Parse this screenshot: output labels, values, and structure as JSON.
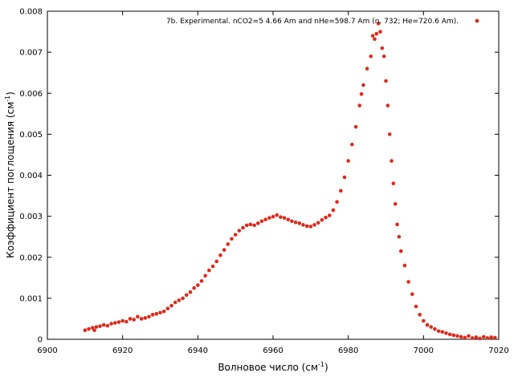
{
  "chart_data": {
    "type": "scatter",
    "title": "",
    "xlabel": "Волновое число (см",
    "xlabel_sup": "-1",
    "xlabel_end": ")",
    "ylabel": "Коэффициент поглощения (см",
    "ylabel_sup": "-1",
    "ylabel_end": ")",
    "xlim": [
      6900,
      7020
    ],
    "ylim": [
      0,
      0.008
    ],
    "xticks": [
      "6900",
      "6920",
      "6940",
      "6960",
      "6980",
      "7000",
      "7020"
    ],
    "yticks": [
      "0",
      "0.001",
      "0.002",
      "0.003",
      "0.004",
      "0.005",
      "0.006",
      "0.007",
      "0.008"
    ],
    "legend_position": "top-right",
    "grid": false,
    "series": [
      {
        "name": "7b. Experimental. nCO2=5 4.66 Am and nHe=598.7 Am (n. 732; He=720.6 Am).",
        "color": "#dd2a1b",
        "x": [
          6910.0,
          6911.0,
          6912.0,
          6912.5,
          6913.0,
          6914.0,
          6915.0,
          6916.0,
          6917.0,
          6918.0,
          6919.0,
          6920.0,
          6921.0,
          6922.0,
          6923.0,
          6924.0,
          6925.0,
          6926.0,
          6927.0,
          6928.0,
          6929.0,
          6930.0,
          6931.0,
          6932.0,
          6933.0,
          6934.0,
          6935.0,
          6936.0,
          6937.0,
          6938.0,
          6939.0,
          6940.0,
          6941.0,
          6942.0,
          6943.0,
          6944.0,
          6945.0,
          6946.0,
          6947.0,
          6948.0,
          6949.0,
          6950.0,
          6951.0,
          6952.0,
          6953.0,
          6954.0,
          6955.0,
          6956.0,
          6957.0,
          6958.0,
          6959.0,
          6960.0,
          6961.0,
          6962.0,
          6963.0,
          6964.0,
          6965.0,
          6966.0,
          6967.0,
          6968.0,
          6969.0,
          6970.0,
          6971.0,
          6972.0,
          6973.0,
          6974.0,
          6975.0,
          6976.0,
          6977.0,
          6978.0,
          6979.0,
          6980.0,
          6981.0,
          6982.0,
          6983.0,
          6983.5,
          6984.0,
          6985.0,
          6986.0,
          6986.5,
          6987.0,
          6987.5,
          6988.0,
          6988.5,
          6989.0,
          6989.5,
          6990.0,
          6990.5,
          6991.0,
          6991.5,
          6992.0,
          6992.5,
          6993.0,
          6993.5,
          6994.0,
          6995.0,
          6996.0,
          6997.0,
          6998.0,
          6999.0,
          7000.0,
          7001.0,
          7002.0,
          7003.0,
          7004.0,
          7005.0,
          7006.0,
          7007.0,
          7008.0,
          7009.0,
          7010.0,
          7011.0,
          7012.0,
          7013.0,
          7014.0,
          7015.0,
          7016.0,
          7017.0,
          7018.0,
          7019.0
        ],
        "y": [
          0.00022,
          0.00025,
          0.00028,
          0.00022,
          0.0003,
          0.00032,
          0.00035,
          0.00033,
          0.00038,
          0.0004,
          0.00042,
          0.00045,
          0.00043,
          0.0005,
          0.00048,
          0.00055,
          0.0005,
          0.00052,
          0.00055,
          0.0006,
          0.00062,
          0.00065,
          0.00068,
          0.00075,
          0.00082,
          0.0009,
          0.00095,
          0.001,
          0.00108,
          0.00115,
          0.00125,
          0.00132,
          0.00142,
          0.00155,
          0.00168,
          0.00178,
          0.0019,
          0.00205,
          0.00218,
          0.00232,
          0.00245,
          0.00255,
          0.00265,
          0.00272,
          0.00278,
          0.0028,
          0.00278,
          0.00283,
          0.00288,
          0.00292,
          0.00296,
          0.00299,
          0.00303,
          0.00298,
          0.00296,
          0.00292,
          0.00288,
          0.00285,
          0.00283,
          0.00279,
          0.00276,
          0.00275,
          0.00279,
          0.00284,
          0.00291,
          0.00297,
          0.00302,
          0.00315,
          0.00335,
          0.00362,
          0.00395,
          0.00435,
          0.00475,
          0.00518,
          0.0057,
          0.00598,
          0.0062,
          0.0066,
          0.0069,
          0.0074,
          0.00732,
          0.00745,
          0.0077,
          0.0075,
          0.0071,
          0.0069,
          0.0063,
          0.0057,
          0.005,
          0.00435,
          0.0038,
          0.0033,
          0.0028,
          0.0025,
          0.00215,
          0.0018,
          0.0014,
          0.0011,
          0.0008,
          0.0006,
          0.00045,
          0.00035,
          0.0003,
          0.00025,
          0.0002,
          0.00018,
          0.00015,
          0.00012,
          0.0001,
          8e-05,
          6e-05,
          4e-05,
          8e-05,
          3e-05,
          5e-05,
          2e-05,
          6e-05,
          3e-05,
          5e-05,
          4e-05
        ]
      }
    ]
  }
}
